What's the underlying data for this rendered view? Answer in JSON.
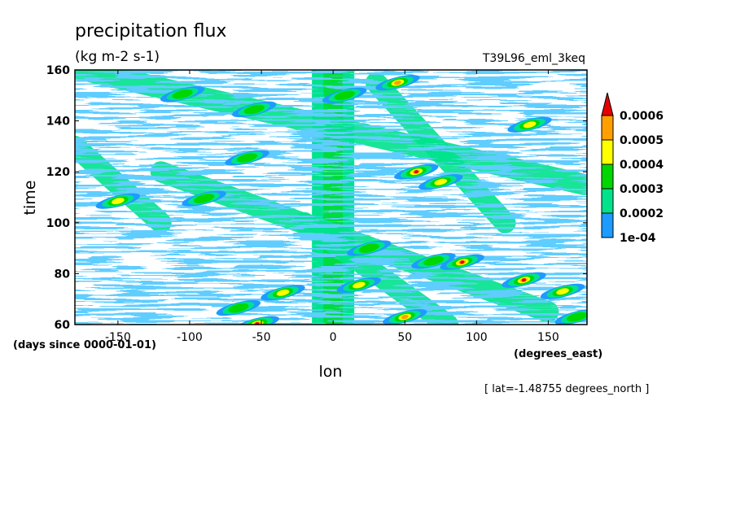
{
  "chart_data": {
    "type": "heatmap",
    "title": "precipitation flux",
    "subtitle": "(kg m-2 s-1)",
    "run_label": "T39L96_eml_3keq",
    "xlabel": "lon",
    "x_units": "(degrees_east)",
    "ylabel": "time",
    "y_units": "(days since 0000-01-01)",
    "footer": "[ lat=-1.48755 degrees_north ]",
    "xlim": [
      -180,
      177
    ],
    "ylim": [
      60,
      160
    ],
    "x_ticks": [
      {
        "value": -150,
        "label": "-150"
      },
      {
        "value": -100,
        "label": "-100"
      },
      {
        "value": -50,
        "label": "-50"
      },
      {
        "value": 0,
        "label": "0"
      },
      {
        "value": 50,
        "label": "50"
      },
      {
        "value": 100,
        "label": "100"
      },
      {
        "value": 150,
        "label": "150"
      }
    ],
    "y_ticks": [
      {
        "value": 60,
        "label": "60"
      },
      {
        "value": 80,
        "label": "80"
      },
      {
        "value": 100,
        "label": "100"
      },
      {
        "value": 120,
        "label": "120"
      },
      {
        "value": 140,
        "label": "140"
      },
      {
        "value": 160,
        "label": "160"
      }
    ],
    "grid": false,
    "colorbar": {
      "placement": "right",
      "extend": "max",
      "levels": [
        {
          "label": "1e-04",
          "value": 0.0001
        },
        {
          "label": "0.0002",
          "value": 0.0002
        },
        {
          "label": "0.0003",
          "value": 0.0003
        },
        {
          "label": "0.0004",
          "value": 0.0004
        },
        {
          "label": "0.0005",
          "value": 0.0005
        },
        {
          "label": "0.0006",
          "value": 0.0006
        }
      ],
      "colors": [
        "#1e9bff",
        "#00e38c",
        "#00d700",
        "#ffff00",
        "#ffa000",
        "#e60000"
      ]
    },
    "features": [
      {
        "name": "equatorial band (enhanced precipitation)",
        "lon": 0,
        "time_range": [
          60,
          160
        ],
        "level": 0.0002
      },
      {
        "name": "westward band",
        "lon_start": 150,
        "lon_end": -120,
        "time_start": 65,
        "time_end": 120,
        "level": 0.0002
      },
      {
        "name": "westward band",
        "lon_start": 175,
        "lon_end": -175,
        "time_start": 115,
        "time_end": 160,
        "level": 0.0002
      },
      {
        "name": "westward band",
        "lon_start": 120,
        "lon_end": 30,
        "time_start": 100,
        "time_end": 155,
        "level": 0.0002
      },
      {
        "name": "westward band",
        "lon_start": -120,
        "lon_end": -180,
        "time_start": 100,
        "time_end": 130,
        "level": 0.0002
      },
      {
        "name": "westward band",
        "lon_start": 80,
        "lon_end": -20,
        "time_start": 60,
        "time_end": 100,
        "level": 0.0002
      }
    ],
    "maxima": [
      {
        "lon": 58,
        "time": 120,
        "value": 0.00065
      },
      {
        "lon": 90,
        "time": 84.5,
        "value": 0.00062
      },
      {
        "lon": 133,
        "time": 77.5,
        "value": 0.00062
      },
      {
        "lon": -53,
        "time": 60.3,
        "value": 0.00062
      },
      {
        "lon": 50,
        "time": 63,
        "value": 0.00055
      },
      {
        "lon": 45,
        "time": 155,
        "value": 0.00052
      },
      {
        "lon": -35,
        "time": 72.5,
        "value": 0.00048
      },
      {
        "lon": 18,
        "time": 75.5,
        "value": 0.00045
      },
      {
        "lon": -66,
        "time": 66.5,
        "value": 0.00038
      },
      {
        "lon": -150,
        "time": 108.5,
        "value": 0.00042
      },
      {
        "lon": 137,
        "time": 138.5,
        "value": 0.00042
      },
      {
        "lon": 75,
        "time": 116,
        "value": 0.00045
      },
      {
        "lon": 160,
        "time": 73,
        "value": 0.00042
      },
      {
        "lon": 25,
        "time": 90,
        "value": 0.00035
      },
      {
        "lon": -105,
        "time": 150.5,
        "value": 0.00035
      },
      {
        "lon": -60,
        "time": 125.5,
        "value": 0.00035
      },
      {
        "lon": -90,
        "time": 109.5,
        "value": 0.00032
      },
      {
        "lon": -55,
        "time": 144.5,
        "value": 0.00032
      },
      {
        "lon": 70,
        "time": 85,
        "value": 0.00038
      },
      {
        "lon": 170,
        "time": 63,
        "value": 0.00035
      },
      {
        "lon": 8,
        "time": 150,
        "value": 0.00032
      }
    ]
  }
}
